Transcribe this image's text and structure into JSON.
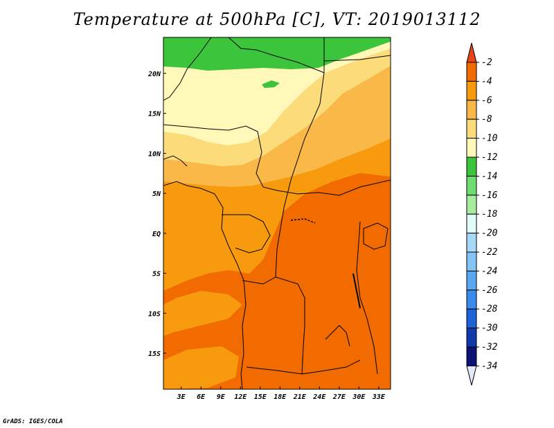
{
  "title": "Temperature at 500hPa [C], VT: 2019013112",
  "credit": "GrADS: IGES/COLA",
  "map": {
    "lon_ticks": [
      "3E",
      "6E",
      "9E",
      "12E",
      "15E",
      "18E",
      "21E",
      "24E",
      "27E",
      "30E",
      "33E"
    ],
    "lat_ticks": [
      "20N",
      "15N",
      "10N",
      "5N",
      "EQ",
      "5S",
      "10S",
      "15S"
    ],
    "lon_values": [
      3,
      6,
      9,
      12,
      15,
      18,
      21,
      24,
      27,
      30,
      33
    ],
    "lat_values": [
      20,
      15,
      10,
      5,
      0,
      -5,
      -10,
      -15
    ]
  },
  "colorbar": {
    "labels": [
      "-2",
      "-4",
      "-6",
      "-8",
      "-10",
      "-12",
      "-14",
      "-16",
      "-18",
      "-20",
      "-22",
      "-24",
      "-26",
      "-28",
      "-30",
      "-32",
      "-34"
    ],
    "colors": [
      "#e8441a",
      "#f26b00",
      "#f79a0d",
      "#f9b848",
      "#fcdc7a",
      "#fff8b8",
      "#3cc43c",
      "#6fdc6f",
      "#a8eca0",
      "#e3fbf6",
      "#a6d8f8",
      "#84c4f6",
      "#5aa8f2",
      "#3b8bec",
      "#1d62d6",
      "#0f3aa8",
      "#0a1275",
      "#e4e8fa"
    ],
    "units": "C"
  }
}
